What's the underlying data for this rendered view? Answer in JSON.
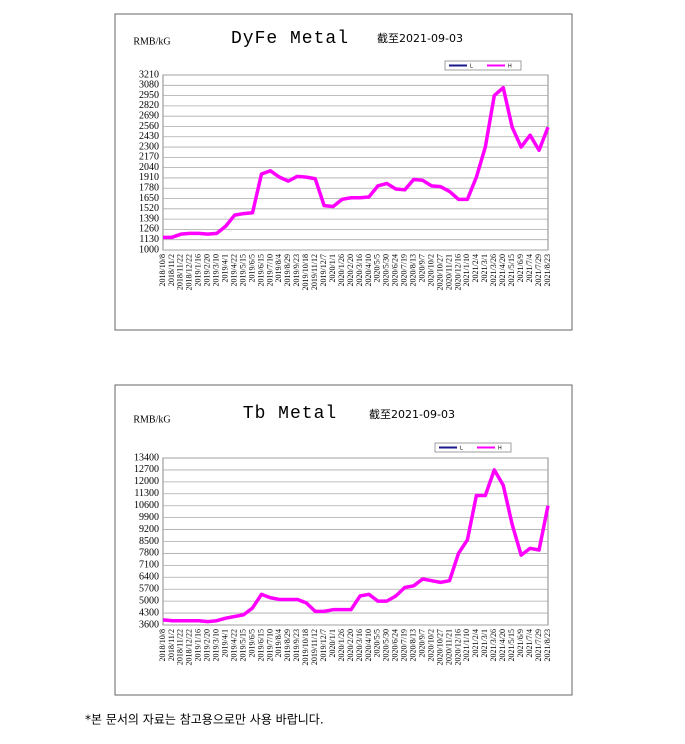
{
  "chart_data": [
    {
      "type": "line",
      "title": "DyFe Metal",
      "subtitle": "截至2021-09-03",
      "y_label": "RMB/kG",
      "categories": [
        "2018/10/8",
        "2018/11/2",
        "2018/11/22",
        "2018/12/22",
        "2019/1/16",
        "2019/2/20",
        "2019/3/10",
        "2019/4/1",
        "2019/4/22",
        "2019/5/15",
        "2019/6/5",
        "2019/6/15",
        "2019/7/10",
        "2019/8/4",
        "2019/8/29",
        "2019/9/23",
        "2019/10/18",
        "2019/11/12",
        "2019/12/7",
        "2020/1/1",
        "2020/1/26",
        "2020/2/20",
        "2020/3/16",
        "2020/4/10",
        "2020/5/5",
        "2020/5/30",
        "2020/6/24",
        "2020/7/19",
        "2020/8/13",
        "2020/9/7",
        "2020/10/2",
        "2020/10/27",
        "2020/11/21",
        "2020/12/16",
        "2021/1/10",
        "2021/2/4",
        "2021/3/1",
        "2021/3/26",
        "2021/4/20",
        "2021/5/15",
        "2021/6/9",
        "2021/7/4",
        "2021/7/29",
        "2021/8/23"
      ],
      "series": [
        {
          "name": "L",
          "color": "#1a1a8c",
          "values": [
            1160,
            1160,
            1200,
            1210,
            1210,
            1200,
            1210,
            1300,
            1440,
            1460,
            1470,
            1960,
            2000,
            1920,
            1870,
            1930,
            1920,
            1900,
            1560,
            1550,
            1640,
            1660,
            1660,
            1670,
            1810,
            1840,
            1770,
            1760,
            1890,
            1880,
            1810,
            1800,
            1740,
            1640,
            1640,
            1920,
            2300,
            2950,
            3050,
            2550,
            2300,
            2450,
            2260,
            2550
          ]
        },
        {
          "name": "H",
          "color": "#ff00ff",
          "values": [
            1160,
            1160,
            1200,
            1210,
            1210,
            1200,
            1210,
            1300,
            1440,
            1460,
            1470,
            1960,
            2000,
            1920,
            1870,
            1930,
            1920,
            1900,
            1560,
            1550,
            1640,
            1660,
            1660,
            1670,
            1810,
            1840,
            1770,
            1760,
            1890,
            1880,
            1810,
            1800,
            1740,
            1640,
            1640,
            1920,
            2300,
            2950,
            3050,
            2550,
            2300,
            2450,
            2260,
            2550
          ]
        }
      ],
      "ylim": [
        1000,
        3210
      ],
      "yticks": [
        1000,
        1130,
        1260,
        1390,
        1520,
        1650,
        1780,
        1910,
        2040,
        2170,
        2300,
        2430,
        2560,
        2690,
        2820,
        2950,
        3080,
        3210
      ],
      "grid": true
    },
    {
      "type": "line",
      "title": "Tb Metal",
      "subtitle": "截至2021-09-03",
      "y_label": "RMB/kG",
      "categories": [
        "2018/10/8",
        "2018/11/2",
        "2018/11/22",
        "2018/12/22",
        "2019/1/16",
        "2019/2/20",
        "2019/3/10",
        "2019/4/1",
        "2019/4/22",
        "2019/5/15",
        "2019/6/5",
        "2019/6/15",
        "2019/7/10",
        "2019/8/4",
        "2019/8/29",
        "2019/9/23",
        "2019/10/18",
        "2019/11/12",
        "2019/12/7",
        "2020/1/1",
        "2020/1/26",
        "2020/2/20",
        "2020/3/16",
        "2020/4/10",
        "2020/5/5",
        "2020/5/30",
        "2020/6/24",
        "2020/7/19",
        "2020/8/13",
        "2020/9/7",
        "2020/10/2",
        "2020/10/27",
        "2020/11/21",
        "2020/12/16",
        "2021/1/10",
        "2021/2/4",
        "2021/3/1",
        "2021/3/26",
        "2021/4/20",
        "2021/5/15",
        "2021/6/9",
        "2021/7/4",
        "2021/7/29",
        "2021/8/23"
      ],
      "series": [
        {
          "name": "L",
          "color": "#1a1a8c",
          "values": [
            3900,
            3850,
            3850,
            3850,
            3850,
            3800,
            3850,
            4000,
            4100,
            4200,
            4600,
            5400,
            5200,
            5100,
            5100,
            5100,
            4900,
            4400,
            4400,
            4500,
            4500,
            4500,
            5300,
            5400,
            5000,
            5000,
            5300,
            5800,
            5900,
            6300,
            6200,
            6100,
            6200,
            7800,
            8600,
            11200,
            11200,
            12700,
            11800,
            9500,
            7700,
            8100,
            8000,
            10600
          ]
        },
        {
          "name": "H",
          "color": "#ff00ff",
          "values": [
            3900,
            3850,
            3850,
            3850,
            3850,
            3800,
            3850,
            4000,
            4100,
            4200,
            4600,
            5400,
            5200,
            5100,
            5100,
            5100,
            4900,
            4400,
            4400,
            4500,
            4500,
            4500,
            5300,
            5400,
            5000,
            5000,
            5300,
            5800,
            5900,
            6300,
            6200,
            6100,
            6200,
            7800,
            8600,
            11200,
            11200,
            12700,
            11800,
            9500,
            7700,
            8100,
            8000,
            10600
          ]
        }
      ],
      "ylim": [
        3600,
        13400
      ],
      "yticks": [
        3600,
        4300,
        5000,
        5700,
        6400,
        7100,
        7800,
        8500,
        9200,
        9900,
        10600,
        11300,
        12000,
        12700,
        13400
      ],
      "grid": true
    }
  ],
  "footnote": "*본 문서의 자료는 참고용으로만 사용 바랍니다."
}
